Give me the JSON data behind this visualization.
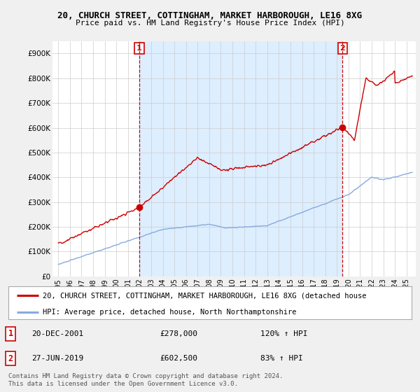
{
  "title1": "20, CHURCH STREET, COTTINGHAM, MARKET HARBOROUGH, LE16 8XG",
  "title2": "Price paid vs. HM Land Registry's House Price Index (HPI)",
  "ylim": [
    0,
    950000
  ],
  "yticks": [
    0,
    100000,
    200000,
    300000,
    400000,
    500000,
    600000,
    700000,
    800000,
    900000
  ],
  "ytick_labels": [
    "£0",
    "£100K",
    "£200K",
    "£300K",
    "£400K",
    "£500K",
    "£600K",
    "£700K",
    "£800K",
    "£900K"
  ],
  "bg_color": "#f0f0f0",
  "plot_bg_color": "#ffffff",
  "shade_color": "#ddeeff",
  "red_line_color": "#cc0000",
  "blue_line_color": "#88aadd",
  "sale1_x": 2001.97,
  "sale1_y": 278000,
  "sale2_x": 2019.49,
  "sale2_y": 602500,
  "sale1_date": "20-DEC-2001",
  "sale1_price": "£278,000",
  "sale1_hpi": "120% ↑ HPI",
  "sale2_date": "27-JUN-2019",
  "sale2_price": "£602,500",
  "sale2_hpi": "83% ↑ HPI",
  "legend_line1": "20, CHURCH STREET, COTTINGHAM, MARKET HARBOROUGH, LE16 8XG (detached house",
  "legend_line2": "HPI: Average price, detached house, North Northamptonshire",
  "footnote": "Contains HM Land Registry data © Crown copyright and database right 2024.\nThis data is licensed under the Open Government Licence v3.0.",
  "xlim_left": 1994.5,
  "xlim_right": 2025.8,
  "xticks": [
    1995,
    1996,
    1997,
    1998,
    1999,
    2000,
    2001,
    2002,
    2003,
    2004,
    2005,
    2006,
    2007,
    2008,
    2009,
    2010,
    2011,
    2012,
    2013,
    2014,
    2015,
    2016,
    2017,
    2018,
    2019,
    2020,
    2021,
    2022,
    2023,
    2024,
    2025
  ]
}
